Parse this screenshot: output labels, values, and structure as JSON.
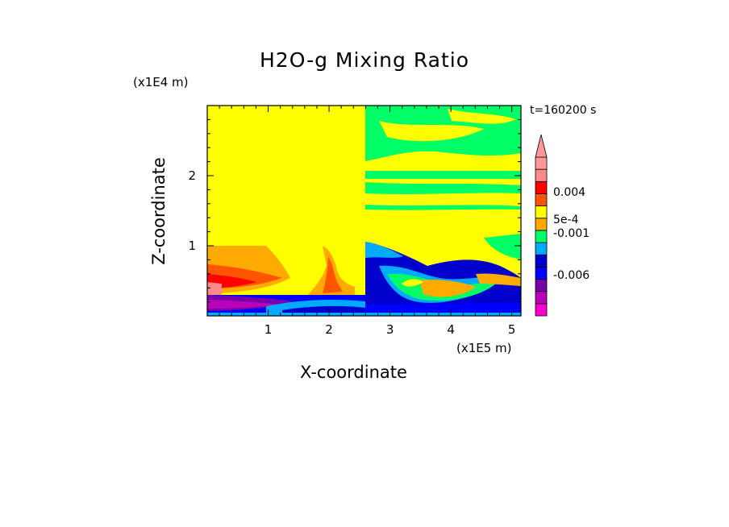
{
  "chart_data": {
    "type": "heatmap",
    "title": "H2O-g Mixing Ratio",
    "xlabel": "X-coordinate",
    "ylabel": "Z-coordinate",
    "x_scale_label": "(x1E5 m)",
    "y_scale_label": "(x1E4 m)",
    "timestamp": "t=160200 s",
    "xlim": [
      0,
      5.15
    ],
    "ylim": [
      0,
      3.0
    ],
    "x_ticks": [
      "1",
      "2",
      "3",
      "4",
      "5"
    ],
    "y_ticks": [
      "1",
      "2"
    ],
    "colorbar": {
      "extend": "max",
      "labels": [
        "0.004",
        "5e-4",
        "-0.001",
        "-0.006"
      ],
      "colors": [
        "#ff00cc",
        "#bb00bb",
        "#7700aa",
        "#0000ff",
        "#0000cc",
        "#00aaff",
        "#00ff66",
        "#ffaa00",
        "#ffff00",
        "#ff5500",
        "#ff0000",
        "#ff8888",
        "#ff9999"
      ]
    }
  }
}
